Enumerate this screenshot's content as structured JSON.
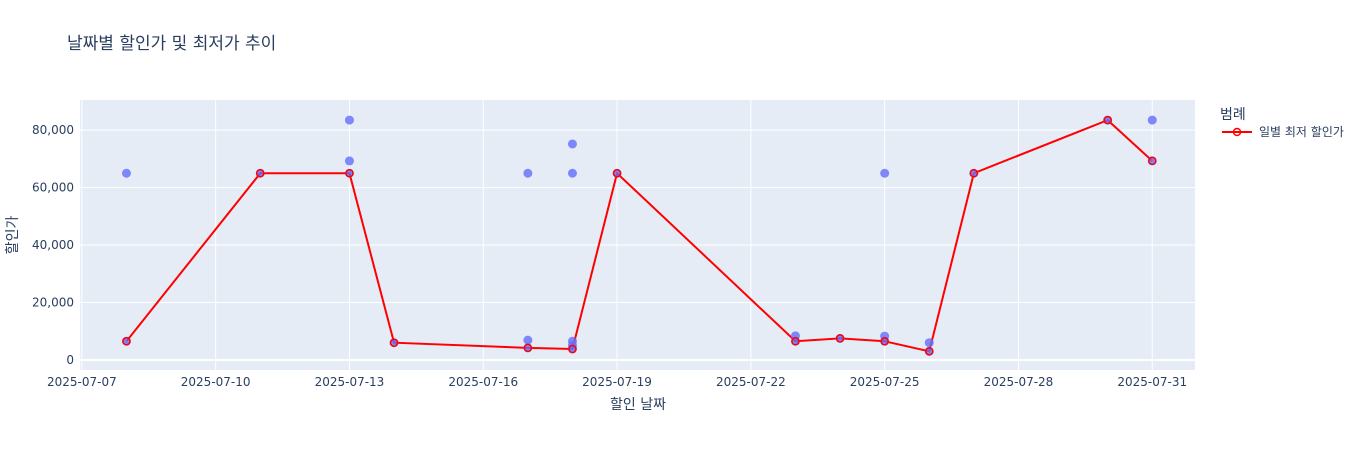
{
  "chart_data": {
    "type": "scatter",
    "title": "날짜별 할인가 및 최저가 추이",
    "xlabel": "할인 날짜",
    "ylabel": "할인가",
    "x_type": "date",
    "xlim": [
      "2025-07-06T23:00",
      "2025-07-31T23:00"
    ],
    "ylim": [
      -3500,
      90500
    ],
    "x_ticks": [
      "2025-07-07",
      "2025-07-10",
      "2025-07-13",
      "2025-07-16",
      "2025-07-19",
      "2025-07-22",
      "2025-07-25",
      "2025-07-28",
      "2025-07-31"
    ],
    "y_ticks": [
      0,
      20000,
      40000,
      60000,
      80000
    ],
    "y_tick_labels": [
      "0",
      "20,000",
      "40,000",
      "60,000",
      "80,000"
    ],
    "grid": true,
    "legend": {
      "title": "범례",
      "position": "right"
    },
    "series": [
      {
        "type": "scatter",
        "color": "#636efa",
        "points": [
          {
            "x": "2025-07-08",
            "y": 65000
          },
          {
            "x": "2025-07-08",
            "y": 6500
          },
          {
            "x": "2025-07-11",
            "y": 65000
          },
          {
            "x": "2025-07-13",
            "y": 83500
          },
          {
            "x": "2025-07-13",
            "y": 69300
          },
          {
            "x": "2025-07-13",
            "y": 65000
          },
          {
            "x": "2025-07-14",
            "y": 6000
          },
          {
            "x": "2025-07-17",
            "y": 65000
          },
          {
            "x": "2025-07-17",
            "y": 6900
          },
          {
            "x": "2025-07-17",
            "y": 4200
          },
          {
            "x": "2025-07-18",
            "y": 75200
          },
          {
            "x": "2025-07-18",
            "y": 65000
          },
          {
            "x": "2025-07-18",
            "y": 6500
          },
          {
            "x": "2025-07-18",
            "y": 5000
          },
          {
            "x": "2025-07-18",
            "y": 3800
          },
          {
            "x": "2025-07-19",
            "y": 65000
          },
          {
            "x": "2025-07-23",
            "y": 8400
          },
          {
            "x": "2025-07-23",
            "y": 6500
          },
          {
            "x": "2025-07-24",
            "y": 7500
          },
          {
            "x": "2025-07-25",
            "y": 65000
          },
          {
            "x": "2025-07-25",
            "y": 8300
          },
          {
            "x": "2025-07-25",
            "y": 6500
          },
          {
            "x": "2025-07-26",
            "y": 6000
          },
          {
            "x": "2025-07-26",
            "y": 3000
          },
          {
            "x": "2025-07-27",
            "y": 65000
          },
          {
            "x": "2025-07-30",
            "y": 83500
          },
          {
            "x": "2025-07-31",
            "y": 83500
          },
          {
            "x": "2025-07-31",
            "y": 69300
          }
        ]
      },
      {
        "name": "일별 최저 할인가",
        "type": "line",
        "color": "#ff0000",
        "points": [
          {
            "x": "2025-07-08",
            "y": 6500
          },
          {
            "x": "2025-07-11",
            "y": 65000
          },
          {
            "x": "2025-07-13",
            "y": 65000
          },
          {
            "x": "2025-07-14",
            "y": 6000
          },
          {
            "x": "2025-07-17",
            "y": 4200
          },
          {
            "x": "2025-07-18",
            "y": 3800
          },
          {
            "x": "2025-07-19",
            "y": 65000
          },
          {
            "x": "2025-07-23",
            "y": 6500
          },
          {
            "x": "2025-07-24",
            "y": 7500
          },
          {
            "x": "2025-07-25",
            "y": 6500
          },
          {
            "x": "2025-07-26",
            "y": 3000
          },
          {
            "x": "2025-07-27",
            "y": 65000
          },
          {
            "x": "2025-07-30",
            "y": 83500
          },
          {
            "x": "2025-07-31",
            "y": 69300
          }
        ]
      }
    ]
  }
}
